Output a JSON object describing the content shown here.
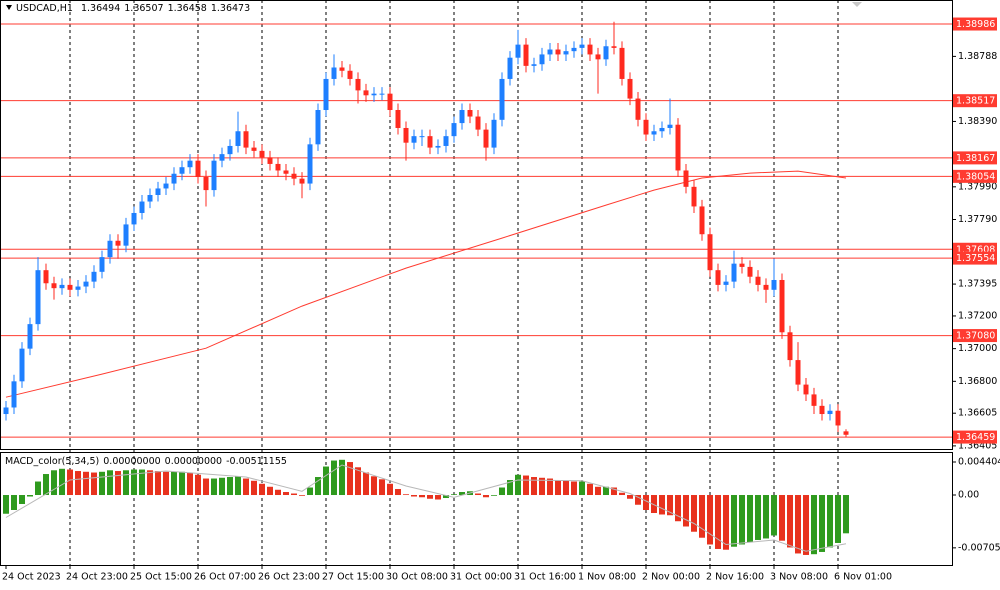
{
  "chart_data": {
    "type": "candlestick",
    "symbol": "USDCAD,H1",
    "header_values": [
      "1.36494",
      "1.36507",
      "1.36458",
      "1.36473"
    ],
    "up_color": "#1e7fff",
    "down_color": "#ff2a1f",
    "xlim": [
      -0.75,
      118.25
    ],
    "ylim": [
      1.36386,
      1.39133
    ],
    "yticks": [
      1.38788,
      {
        "value": 1.3839,
        "label": "1.38390"
      },
      {
        "value": 1.3799,
        "label": "1.37990"
      },
      {
        "value": 1.3779,
        "label": "1.37790"
      },
      1.37395,
      {
        "value": 1.372,
        "label": "1.37200"
      },
      {
        "value": 1.37,
        "label": "1.37000"
      },
      {
        "value": 1.368,
        "label": "1.36800"
      },
      1.36605,
      1.36405
    ],
    "xticks": [
      {
        "value": 0,
        "label": "24 Oct 2023"
      },
      {
        "value": 8,
        "label": "24 Oct 23:00"
      },
      {
        "value": 16,
        "label": "25 Oct 15:00"
      },
      {
        "value": 24,
        "label": "26 Oct 07:00"
      },
      {
        "value": 32,
        "label": "26 Oct 23:00"
      },
      {
        "value": 40,
        "label": "27 Oct 15:00"
      },
      {
        "value": 48,
        "label": "30 Oct 08:00"
      },
      {
        "value": 56,
        "label": "31 Oct 00:00"
      },
      {
        "value": 64,
        "label": "31 Oct 16:00"
      },
      {
        "value": 72,
        "label": "1 Nov 08:00"
      },
      {
        "value": 80,
        "label": "2 Nov 00:00"
      },
      {
        "value": 88,
        "label": "2 Nov 16:00"
      },
      {
        "value": 96,
        "label": "3 Nov 08:00"
      },
      {
        "value": 104,
        "label": "6 Nov 01:00"
      }
    ],
    "xgrid": true,
    "level_color": "#ff3b30",
    "levels": [
      1.38986,
      1.38517,
      1.38167,
      1.38054,
      1.37608,
      1.37554,
      {
        "value": 1.3708,
        "label": "1.37080"
      },
      1.36459
    ],
    "candles": [
      [
        1.366,
        1.3668,
        1.3656,
        1.3664
      ],
      [
        1.3664,
        1.3684,
        1.366,
        1.368
      ],
      [
        1.368,
        1.3704,
        1.3676,
        1.37
      ],
      [
        1.37,
        1.3719,
        1.3696,
        1.3715
      ],
      [
        1.3715,
        1.3756,
        1.3711,
        1.3748
      ],
      [
        1.3748,
        1.3752,
        1.3736,
        1.374
      ],
      [
        1.374,
        1.3744,
        1.373,
        1.3737
      ],
      [
        1.3737,
        1.3743,
        1.3733,
        1.3739
      ],
      [
        1.3739,
        1.3743,
        1.3732,
        1.3736
      ],
      [
        1.3736,
        1.3742,
        1.3732,
        1.3738
      ],
      [
        1.3738,
        1.3745,
        1.3734,
        1.3741
      ],
      [
        1.3741,
        1.3751,
        1.3737,
        1.3747
      ],
      [
        1.3747,
        1.376,
        1.3743,
        1.3756
      ],
      [
        1.3756,
        1.377,
        1.3752,
        1.3766
      ],
      [
        1.3766,
        1.377,
        1.3755,
        1.3763
      ],
      [
        1.3763,
        1.378,
        1.3759,
        1.3776
      ],
      [
        1.3776,
        1.3787,
        1.3772,
        1.3783
      ],
      [
        1.3783,
        1.3794,
        1.3779,
        1.379
      ],
      [
        1.379,
        1.3798,
        1.3786,
        1.3794
      ],
      [
        1.3794,
        1.3802,
        1.379,
        1.3798
      ],
      [
        1.3798,
        1.3805,
        1.3794,
        1.3801
      ],
      [
        1.3801,
        1.3811,
        1.3797,
        1.3807
      ],
      [
        1.3807,
        1.3815,
        1.3803,
        1.3811
      ],
      [
        1.3811,
        1.3819,
        1.3807,
        1.3815
      ],
      [
        1.3815,
        1.3819,
        1.3801,
        1.3805
      ],
      [
        1.3805,
        1.3809,
        1.3787,
        1.3797
      ],
      [
        1.3797,
        1.3819,
        1.3793,
        1.3815
      ],
      [
        1.3815,
        1.3823,
        1.3811,
        1.3819
      ],
      [
        1.3819,
        1.3828,
        1.3815,
        1.3824
      ],
      [
        1.3824,
        1.3845,
        1.382,
        1.3833
      ],
      [
        1.3833,
        1.3837,
        1.3819,
        1.3823
      ],
      [
        1.3823,
        1.3827,
        1.3817,
        1.3821
      ],
      [
        1.3821,
        1.3825,
        1.3813,
        1.3817
      ],
      [
        1.3817,
        1.3821,
        1.3809,
        1.3813
      ],
      [
        1.3813,
        1.3817,
        1.3805,
        1.3809
      ],
      [
        1.3809,
        1.3813,
        1.3803,
        1.3807
      ],
      [
        1.3807,
        1.3811,
        1.38,
        1.3804
      ],
      [
        1.3804,
        1.3808,
        1.3792,
        1.3801
      ],
      [
        1.3801,
        1.3829,
        1.3797,
        1.3825
      ],
      [
        1.3825,
        1.385,
        1.3821,
        1.3846
      ],
      [
        1.3846,
        1.3869,
        1.3842,
        1.3865
      ],
      [
        1.3865,
        1.388,
        1.3861,
        1.3872
      ],
      [
        1.3872,
        1.3876,
        1.3866,
        1.387
      ],
      [
        1.387,
        1.3874,
        1.3861,
        1.3865
      ],
      [
        1.3865,
        1.3869,
        1.385,
        1.3858
      ],
      [
        1.3858,
        1.3862,
        1.3851,
        1.3855
      ],
      [
        1.3855,
        1.386,
        1.3851,
        1.3856
      ],
      [
        1.3856,
        1.386,
        1.3852,
        1.3856
      ],
      [
        1.3856,
        1.386,
        1.3842,
        1.3846
      ],
      [
        1.3846,
        1.385,
        1.3831,
        1.3835
      ],
      [
        1.3835,
        1.3839,
        1.3815,
        1.3826
      ],
      [
        1.3826,
        1.3834,
        1.3822,
        1.383
      ],
      [
        1.383,
        1.3834,
        1.3824,
        1.383
      ],
      [
        1.383,
        1.3834,
        1.3819,
        1.3823
      ],
      [
        1.3823,
        1.3828,
        1.3819,
        1.3824
      ],
      [
        1.3824,
        1.3834,
        1.382,
        1.383
      ],
      [
        1.383,
        1.3842,
        1.3826,
        1.3838
      ],
      [
        1.3838,
        1.385,
        1.3834,
        1.3846
      ],
      [
        1.3846,
        1.385,
        1.3838,
        1.3842
      ],
      [
        1.3842,
        1.3846,
        1.383,
        1.3834
      ],
      [
        1.3834,
        1.3838,
        1.3815,
        1.3823
      ],
      [
        1.3823,
        1.3844,
        1.3819,
        1.384
      ],
      [
        1.384,
        1.3869,
        1.3836,
        1.3865
      ],
      [
        1.3865,
        1.3882,
        1.3861,
        1.3878
      ],
      [
        1.3878,
        1.3895,
        1.3874,
        1.3886
      ],
      [
        1.3886,
        1.389,
        1.3869,
        1.3873
      ],
      [
        1.3873,
        1.3878,
        1.3869,
        1.3874
      ],
      [
        1.3874,
        1.3884,
        1.387,
        1.388
      ],
      [
        1.388,
        1.3887,
        1.3876,
        1.3883
      ],
      [
        1.3883,
        1.3887,
        1.3876,
        1.388
      ],
      [
        1.388,
        1.3886,
        1.3876,
        1.3882
      ],
      [
        1.3882,
        1.3888,
        1.3878,
        1.3884
      ],
      [
        1.3884,
        1.389,
        1.388,
        1.3886
      ],
      [
        1.3886,
        1.389,
        1.3876,
        1.388
      ],
      [
        1.388,
        1.3884,
        1.3856,
        1.3877
      ],
      [
        1.3877,
        1.3889,
        1.3873,
        1.3885
      ],
      [
        1.3885,
        1.39,
        1.388,
        1.3884
      ],
      [
        1.3884,
        1.3888,
        1.3861,
        1.3865
      ],
      [
        1.3865,
        1.3869,
        1.3849,
        1.3853
      ],
      [
        1.3853,
        1.3857,
        1.3836,
        1.384
      ],
      [
        1.384,
        1.3844,
        1.3827,
        1.3831
      ],
      [
        1.3831,
        1.3837,
        1.3827,
        1.3833
      ],
      [
        1.3833,
        1.3839,
        1.3829,
        1.3835
      ],
      [
        1.3835,
        1.3853,
        1.3831,
        1.3837
      ],
      [
        1.3837,
        1.3841,
        1.3805,
        1.3809
      ],
      [
        1.3809,
        1.3813,
        1.3795,
        1.3799
      ],
      [
        1.3799,
        1.3803,
        1.3783,
        1.3787
      ],
      [
        1.3787,
        1.3791,
        1.3766,
        1.377
      ],
      [
        1.377,
        1.3774,
        1.3744,
        1.3748
      ],
      [
        1.3748,
        1.3752,
        1.3735,
        1.3739
      ],
      [
        1.3739,
        1.3745,
        1.3735,
        1.3741
      ],
      [
        1.3741,
        1.376,
        1.3737,
        1.3752
      ],
      [
        1.3752,
        1.3756,
        1.3746,
        1.375
      ],
      [
        1.375,
        1.3754,
        1.374,
        1.3744
      ],
      [
        1.3744,
        1.3748,
        1.3735,
        1.3739
      ],
      [
        1.3739,
        1.3743,
        1.3728,
        1.3736
      ],
      [
        1.3736,
        1.3755,
        1.3732,
        1.3742
      ],
      [
        1.3742,
        1.3746,
        1.3706,
        1.371
      ],
      [
        1.371,
        1.3714,
        1.3689,
        1.3693
      ],
      [
        1.3693,
        1.3704,
        1.3674,
        1.3678
      ],
      [
        1.3678,
        1.3682,
        1.3668,
        1.3672
      ],
      [
        1.3672,
        1.3676,
        1.366,
        1.3665
      ],
      [
        1.3665,
        1.3669,
        1.3656,
        1.366
      ],
      [
        1.366,
        1.3666,
        1.3656,
        1.3662
      ],
      [
        1.3662,
        1.3666,
        1.3649,
        1.3653
      ],
      [
        1.36494,
        1.36507,
        1.36458,
        1.36473
      ]
    ],
    "ma": {
      "color": "#ff3b30",
      "x": [
        0,
        12,
        25,
        37,
        50,
        62,
        75,
        81,
        87,
        93,
        99,
        105
      ],
      "values": [
        1.36703,
        1.36844,
        1.37003,
        1.3726,
        1.37493,
        1.37676,
        1.37878,
        1.3797,
        1.38044,
        1.38074,
        1.38086,
        1.38044
      ]
    },
    "macd": {
      "name": "MACD_color(5,34,5)",
      "readouts": [
        "0.00000000",
        "0.00000000",
        "-0.00511155"
      ],
      "up_color": "#2f9a1e",
      "down_color": "#e8321e",
      "ylim": [
        -0.00934,
        0.00574
      ],
      "yticks": [
        0.0044049,
        {
          "value": 0,
          "label": "0.00"
        },
        -0.0070513
      ],
      "values": [
        -0.0025,
        -0.002,
        -0.0012,
        -0.0002,
        0.0018,
        0.0028,
        0.0033,
        0.0035,
        0.0034,
        0.0032,
        0.0031,
        0.003,
        0.0031,
        0.0033,
        0.0032,
        0.0033,
        0.0034,
        0.0034,
        0.0033,
        0.0032,
        0.0031,
        0.0031,
        0.0031,
        0.003,
        0.0027,
        0.0022,
        0.0022,
        0.0023,
        0.0024,
        0.0025,
        0.0022,
        0.0019,
        0.0015,
        0.0011,
        0.0007,
        0.0004,
        0.0002,
        -0.0001,
        0.001,
        0.0024,
        0.0038,
        0.0046,
        0.0047,
        0.0044,
        0.0037,
        0.003,
        0.0025,
        0.0021,
        0.0015,
        0.0008,
        0.0001,
        -0.0002,
        -0.0003,
        -0.0005,
        -0.0006,
        -0.0004,
        0.0001,
        0.0004,
        0.0005,
        0.0002,
        -0.0003,
        -0.0001,
        0.001,
        0.002,
        0.0027,
        0.0026,
        0.0024,
        0.0023,
        0.0022,
        0.002,
        0.0019,
        0.0018,
        0.0018,
        0.0015,
        0.0011,
        0.0011,
        0.001,
        0.0003,
        -0.0005,
        -0.0013,
        -0.002,
        -0.0024,
        -0.0026,
        -0.0027,
        -0.0035,
        -0.0042,
        -0.0049,
        -0.0057,
        -0.0066,
        -0.0072,
        -0.0073,
        -0.0069,
        -0.0066,
        -0.0063,
        -0.006,
        -0.0058,
        -0.0054,
        -0.0061,
        -0.007,
        -0.0078,
        -0.008,
        -0.0079,
        -0.0076,
        -0.007,
        -0.0064,
        -0.00511155
      ],
      "signal": {
        "color": "#b8b8b8",
        "x": [
          0,
          8,
          20,
          30,
          37,
          42,
          50,
          56,
          64,
          72,
          78,
          86,
          90,
          96,
          100,
          105
        ],
        "values": [
          -0.003,
          0.002,
          0.0032,
          0.0024,
          0.0005,
          0.004,
          0.0012,
          -0.0003,
          0.002,
          0.0019,
          0.0002,
          -0.0038,
          -0.0066,
          -0.006,
          -0.0075,
          -0.0065
        ]
      }
    }
  }
}
